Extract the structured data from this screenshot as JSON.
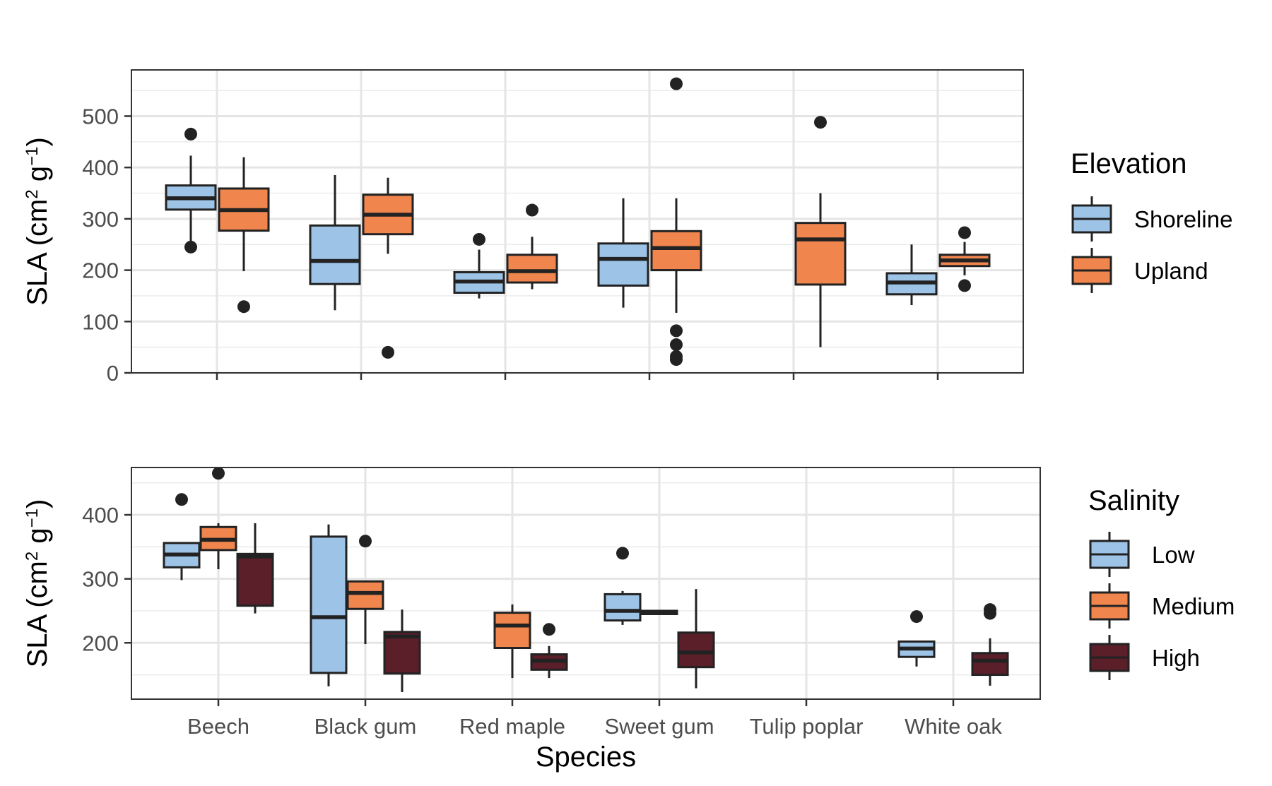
{
  "chart_data": [
    {
      "type": "boxplot",
      "ylabel": "SLA (cm² g⁻¹)",
      "ylabel_parts": {
        "pre": "SLA (cm",
        "sup1": "2",
        "mid": " g",
        "sup2": "−1",
        "post": ")"
      },
      "ylim": [
        0,
        590
      ],
      "yticks": [
        0,
        100,
        200,
        300,
        400,
        500
      ],
      "grid": true,
      "legend": {
        "title": "Elevation",
        "position": "right"
      },
      "categories": [
        "Beech",
        "Black gum",
        "Red maple",
        "Sweet gum",
        "Tulip poplar",
        "White oak"
      ],
      "series": [
        {
          "name": "Shoreline",
          "color": "#9DC3E6",
          "boxes": [
            {
              "category": "Beech",
              "min": 245,
              "q1": 318,
              "median": 340,
              "q3": 365,
              "max": 423,
              "outliers": [
                465,
                245
              ]
            },
            {
              "category": "Black gum",
              "min": 122,
              "q1": 173,
              "median": 218,
              "q3": 287,
              "max": 385,
              "outliers": []
            },
            {
              "category": "Red maple",
              "min": 145,
              "q1": 156,
              "median": 178,
              "q3": 196,
              "max": 240,
              "outliers": [
                260
              ]
            },
            {
              "category": "Sweet gum",
              "min": 127,
              "q1": 170,
              "median": 222,
              "q3": 252,
              "max": 340,
              "outliers": []
            },
            {
              "category": "White oak",
              "min": 132,
              "q1": 153,
              "median": 176,
              "q3": 194,
              "max": 250,
              "outliers": []
            }
          ]
        },
        {
          "name": "Upland",
          "color": "#F0854D",
          "boxes": [
            {
              "category": "Beech",
              "min": 198,
              "q1": 277,
              "median": 317,
              "q3": 359,
              "max": 420,
              "outliers": [
                129
              ]
            },
            {
              "category": "Black gum",
              "min": 232,
              "q1": 270,
              "median": 308,
              "q3": 347,
              "max": 380,
              "outliers": [
                40
              ]
            },
            {
              "category": "Red maple",
              "min": 163,
              "q1": 176,
              "median": 198,
              "q3": 230,
              "max": 265,
              "outliers": [
                317
              ]
            },
            {
              "category": "Sweet gum",
              "min": 117,
              "q1": 200,
              "median": 243,
              "q3": 276,
              "max": 340,
              "outliers": [
                563,
                82,
                55,
                32,
                26
              ]
            },
            {
              "category": "Tulip poplar",
              "min": 50,
              "q1": 172,
              "median": 260,
              "q3": 292,
              "max": 350,
              "outliers": [
                488
              ]
            },
            {
              "category": "White oak",
              "min": 190,
              "q1": 208,
              "median": 219,
              "q3": 230,
              "max": 255,
              "outliers": [
                273,
                170
              ]
            }
          ]
        }
      ]
    },
    {
      "type": "boxplot",
      "xlabel": "Species",
      "ylabel": "SLA (cm² g⁻¹)",
      "ylabel_parts": {
        "pre": "SLA (cm",
        "sup1": "2",
        "mid": " g",
        "sup2": "−1",
        "post": ")"
      },
      "ylim": [
        112,
        474
      ],
      "yticks": [
        200,
        300,
        400
      ],
      "grid": true,
      "legend": {
        "title": "Salinity",
        "position": "right"
      },
      "categories": [
        "Beech",
        "Black gum",
        "Red maple",
        "Sweet gum",
        "Tulip poplar",
        "White oak"
      ],
      "series": [
        {
          "name": "Low",
          "color": "#9DC3E6",
          "boxes": [
            {
              "category": "Beech",
              "min": 298,
              "q1": 318,
              "median": 338,
              "q3": 356,
              "max": 356,
              "outliers": [
                424
              ]
            },
            {
              "category": "Black gum",
              "min": 132,
              "q1": 153,
              "median": 240,
              "q3": 366,
              "max": 385,
              "outliers": []
            },
            {
              "category": "Sweet gum",
              "min": 228,
              "q1": 235,
              "median": 250,
              "q3": 276,
              "max": 281,
              "outliers": [
                340
              ]
            },
            {
              "category": "White oak",
              "min": 163,
              "q1": 178,
              "median": 191,
              "q3": 202,
              "max": 202,
              "outliers": [
                241
              ]
            }
          ]
        },
        {
          "name": "Medium",
          "color": "#F0854D",
          "boxes": [
            {
              "category": "Beech",
              "min": 315,
              "q1": 345,
              "median": 361,
              "q3": 381,
              "max": 387,
              "outliers": [
                465
              ]
            },
            {
              "category": "Black gum",
              "min": 198,
              "q1": 253,
              "median": 278,
              "q3": 296,
              "max": 296,
              "outliers": [
                359
              ]
            },
            {
              "category": "Red maple",
              "min": 145,
              "q1": 192,
              "median": 227,
              "q3": 247,
              "max": 260,
              "outliers": []
            },
            {
              "category": "Sweet gum",
              "min": 245,
              "q1": 245,
              "median": 248,
              "q3": 250,
              "max": 250,
              "outliers": []
            }
          ]
        },
        {
          "name": "High",
          "color": "#5A1F29",
          "boxes": [
            {
              "category": "Beech",
              "min": 246,
              "q1": 258,
              "median": 335,
              "q3": 339,
              "max": 387,
              "outliers": []
            },
            {
              "category": "Black gum",
              "min": 123,
              "q1": 152,
              "median": 210,
              "q3": 217,
              "max": 252,
              "outliers": []
            },
            {
              "category": "Red maple",
              "min": 145,
              "q1": 158,
              "median": 172,
              "q3": 182,
              "max": 195,
              "outliers": [
                221
              ]
            },
            {
              "category": "Sweet gum",
              "min": 129,
              "q1": 162,
              "median": 185,
              "q3": 216,
              "max": 284,
              "outliers": []
            },
            {
              "category": "White oak",
              "min": 133,
              "q1": 150,
              "median": 172,
              "q3": 184,
              "max": 207,
              "outliers": [
                252,
                246
              ]
            }
          ]
        }
      ]
    }
  ]
}
